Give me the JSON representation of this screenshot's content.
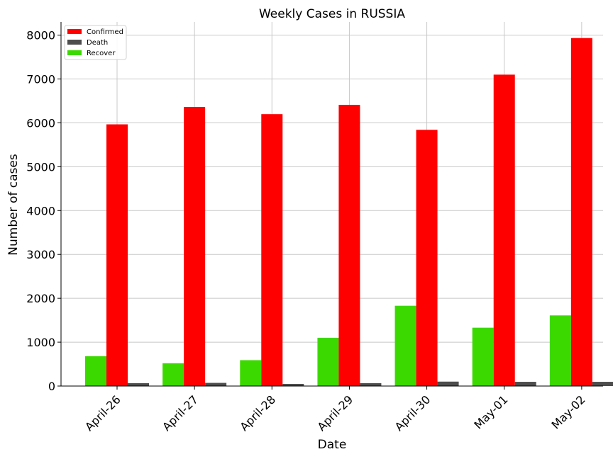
{
  "chart_data": {
    "type": "bar",
    "title": "Weekly Cases in RUSSIA",
    "xlabel": "Date",
    "ylabel": "Number of cases",
    "categories": [
      "April-26",
      "April-27",
      "April-28",
      "April-29",
      "April-30",
      "May-01",
      "May-02"
    ],
    "series": [
      {
        "name": "Recover",
        "color": "#3cd900",
        "values": [
          680,
          520,
          590,
          1100,
          1830,
          1330,
          1610
        ]
      },
      {
        "name": "Confirmed",
        "color": "#ff0000",
        "values": [
          5966,
          6361,
          6198,
          6411,
          5841,
          7099,
          7933
        ]
      },
      {
        "name": "Death",
        "color": "#4d4d4d",
        "values": [
          66,
          72,
          49,
          66,
          101,
          96,
          96
        ]
      }
    ],
    "legend_order": [
      "Confirmed",
      "Death",
      "Recover"
    ],
    "legend_position": "top-left",
    "ylim": [
      0,
      8300
    ],
    "yticks": [
      0,
      1000,
      2000,
      3000,
      4000,
      5000,
      6000,
      7000,
      8000
    ],
    "grid": true
  }
}
